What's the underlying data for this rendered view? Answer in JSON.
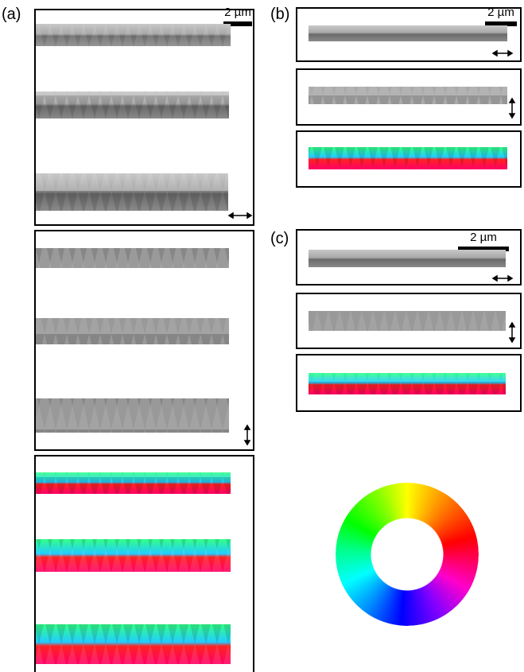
{
  "panels": [
    {
      "label": "(a)",
      "scale_bar": "2 µm"
    },
    {
      "label": "(b)",
      "scale_bar": "2 µm"
    },
    {
      "label": "(c)",
      "scale_bar": "2 µm"
    }
  ]
}
